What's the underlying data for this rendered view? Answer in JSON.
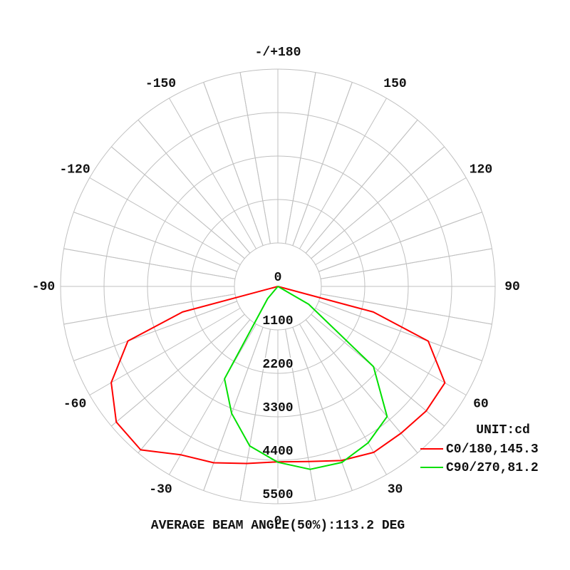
{
  "chart_data": {
    "type": "polar",
    "unit_label": "UNIT:cd",
    "annotation": "AVERAGE BEAM ANGLE(50%):113.2 DEG",
    "x": [
      -90,
      -80,
      -75,
      -70,
      -60,
      -50,
      -40,
      -30,
      -20,
      -10,
      0,
      10,
      20,
      30,
      40,
      50,
      60,
      70,
      75,
      80,
      90
    ],
    "series": [
      {
        "name": "C0/180,145.3",
        "color": "#ff0000",
        "values": [
          0,
          0,
          2500,
          4040,
          4870,
          5340,
          5400,
          4920,
          4750,
          4550,
          4440,
          4500,
          4690,
          4850,
          4850,
          4900,
          4880,
          4050,
          2500,
          0,
          0
        ]
      },
      {
        "name": "C90/270,81.2",
        "color": "#00e000",
        "values": [
          0,
          0,
          0,
          0,
          0,
          0,
          400,
          2700,
          3420,
          4100,
          4450,
          4700,
          4740,
          4570,
          4300,
          3160,
          900,
          0,
          0,
          0,
          0
        ]
      }
    ],
    "xlim": [
      -180,
      180
    ],
    "xticks": [
      {
        "value": 180,
        "label": "-/+180"
      },
      -150,
      -120,
      -90,
      -60,
      -30,
      0,
      30,
      60,
      90,
      120,
      150
    ],
    "ylim": [
      0,
      5500
    ],
    "yticks": [
      0,
      1100,
      2200,
      3300,
      4400,
      5500
    ],
    "grid": true
  }
}
